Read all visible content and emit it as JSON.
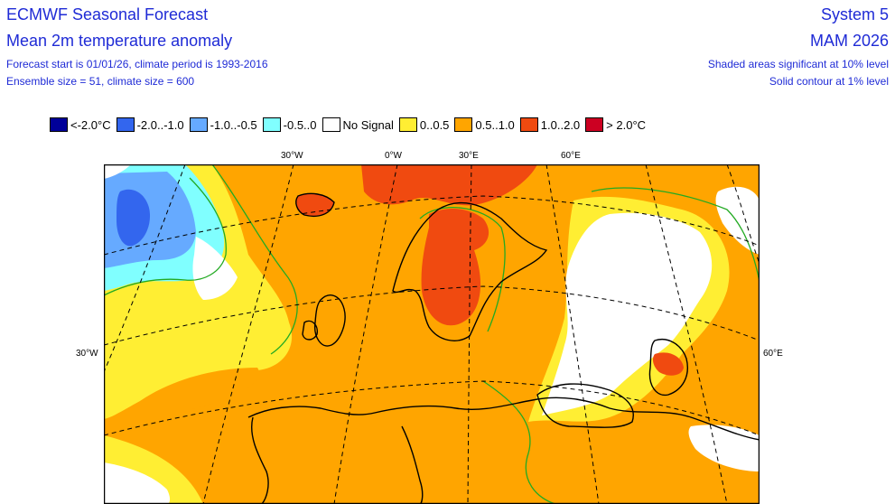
{
  "header": {
    "title_left_1": "ECMWF Seasonal Forecast",
    "title_left_2": "Mean 2m temperature anomaly",
    "info_left_1": "Forecast start is 01/01/26, climate period is 1993-2016",
    "info_left_2": "Ensemble size = 51, climate size = 600",
    "title_right_1": "System 5",
    "title_right_2": "MAM 2026",
    "info_right_1": "Shaded areas significant at 10% level",
    "info_right_2": "Solid contour at 1% level"
  },
  "legend": [
    {
      "label": "<-2.0°C",
      "color": "#000099"
    },
    {
      "label": "-2.0..-1.0",
      "color": "#3366ee"
    },
    {
      "label": "-1.0..-0.5",
      "color": "#66aaff"
    },
    {
      "label": "-0.5..0",
      "color": "#80ffff"
    },
    {
      "label": "No Signal",
      "color": "#ffffff"
    },
    {
      "label": "0..0.5",
      "color": "#ffee33"
    },
    {
      "label": "0.5..1.0",
      "color": "#ffa500"
    },
    {
      "label": "1.0..2.0",
      "color": "#f04a10"
    },
    {
      "label": "> 2.0°C",
      "color": "#cc0022"
    }
  ],
  "map": {
    "lon_labels_top": [
      "30°W",
      "0°W",
      "30°E",
      "60°E"
    ],
    "label_left": "30°W",
    "label_right": "60°E",
    "colors": {
      "orange": "#ffa500",
      "yellow": "#ffee33",
      "red": "#f04a10",
      "cyan": "#80ffff",
      "lightblue": "#66aaff",
      "blue": "#3366ee",
      "white": "#ffffff",
      "contour": "#22aa22"
    }
  }
}
